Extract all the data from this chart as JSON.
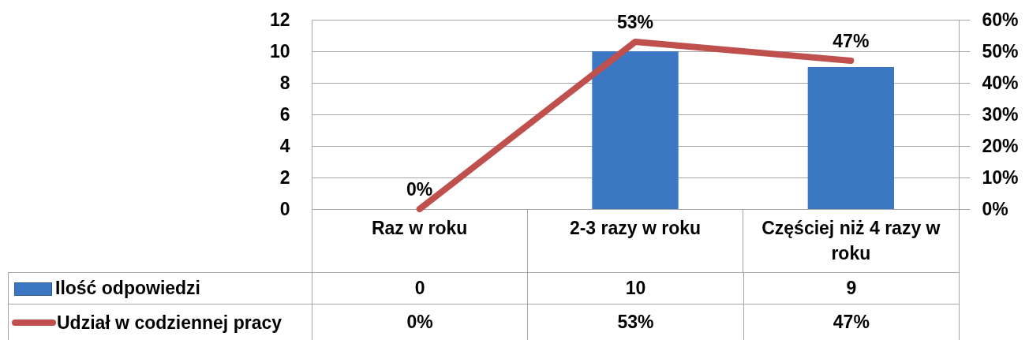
{
  "chart_data": {
    "type": "bar",
    "categories": [
      "Raz w roku",
      "2-3 razy w roku",
      "Częściej niż 4 razy w roku"
    ],
    "series": [
      {
        "name": "Ilość odpowiedzi",
        "color": "#3c77c4",
        "values": [
          0,
          10,
          9
        ],
        "value_labels": [
          "0",
          "10",
          "9"
        ]
      },
      {
        "name": "Udział w codziennej pracy",
        "type": "line",
        "axis": "y2",
        "color": "#c0504d",
        "values": [
          0,
          53,
          47
        ],
        "value_labels": [
          "0%",
          "53%",
          "47%"
        ]
      }
    ],
    "ylim": [
      0,
      12
    ],
    "yticks": [
      0,
      2,
      4,
      6,
      8,
      10,
      12
    ],
    "y2lim": [
      0,
      60
    ],
    "y2ticks": [
      {
        "value": 0,
        "label": "0%"
      },
      {
        "value": 10,
        "label": "10%"
      },
      {
        "value": 20,
        "label": "20%"
      },
      {
        "value": 30,
        "label": "30%"
      },
      {
        "value": 40,
        "label": "40%"
      },
      {
        "value": 50,
        "label": "50%"
      },
      {
        "value": 60,
        "label": "60%"
      }
    ],
    "grid": "y",
    "legend": "bottom left"
  }
}
